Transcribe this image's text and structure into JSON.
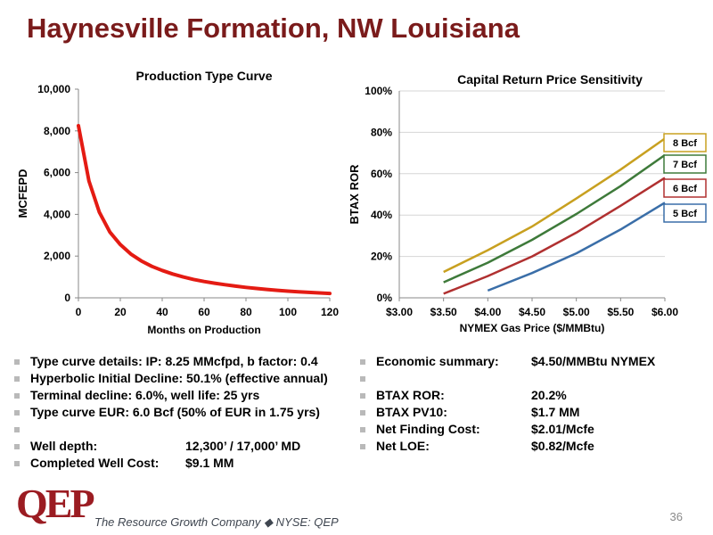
{
  "slide": {
    "title": "Haynesville Formation, NW Louisiana",
    "page_number": "36",
    "tagline": "The Resource Growth Company ◆ NYSE: QEP",
    "logo_text": "QEP",
    "colors": {
      "title": "#7a1b1b",
      "logo": "#9b1c22"
    }
  },
  "chart_data": [
    {
      "type": "line",
      "title": "Production Type Curve",
      "xlabel": "Months on Production",
      "ylabel": "MCFEPD",
      "xlim": [
        0,
        120
      ],
      "ylim": [
        0,
        10000
      ],
      "x_ticks": [
        "0",
        "20",
        "40",
        "60",
        "80",
        "100",
        "120"
      ],
      "y_ticks": [
        "0",
        "2,000",
        "4,000",
        "6,000",
        "8,000",
        "10,000"
      ],
      "grid": false,
      "series": [
        {
          "color": "#e41b13",
          "x": [
            0,
            5,
            10,
            15,
            20,
            25,
            30,
            35,
            40,
            45,
            50,
            55,
            60,
            65,
            70,
            75,
            80,
            85,
            90,
            95,
            100,
            105,
            110,
            115,
            120
          ],
          "y": [
            8250,
            5600,
            4100,
            3150,
            2550,
            2100,
            1770,
            1510,
            1310,
            1140,
            1000,
            880,
            780,
            700,
            630,
            560,
            500,
            450,
            400,
            360,
            320,
            290,
            260,
            235,
            210
          ]
        }
      ]
    },
    {
      "type": "line",
      "title": "Capital Return Price Sensitivity",
      "xlabel": "NYMEX Gas Price ($/MMBtu)",
      "ylabel": "BTAX ROR",
      "xlim": [
        3.0,
        6.0
      ],
      "ylim": [
        0,
        100
      ],
      "x_ticks": [
        "$3.00",
        "$3.50",
        "$4.00",
        "$4.50",
        "$5.00",
        "$5.50",
        "$6.00"
      ],
      "y_ticks": [
        "0%",
        "20%",
        "40%",
        "60%",
        "80%",
        "100%"
      ],
      "grid": true,
      "legend": "right, end-of-line labels",
      "series": [
        {
          "name": "8 Bcf",
          "color": "#c8a020",
          "x": [
            3.5,
            4.0,
            4.5,
            5.0,
            5.5,
            6.0
          ],
          "y": [
            12.5,
            23,
            34.5,
            48,
            62,
            77
          ]
        },
        {
          "name": "7 Bcf",
          "color": "#3e7a3a",
          "x": [
            3.5,
            4.0,
            4.5,
            5.0,
            5.5,
            6.0
          ],
          "y": [
            7.5,
            17,
            28,
            40.5,
            54,
            69
          ]
        },
        {
          "name": "6 Bcf",
          "color": "#b03030",
          "x": [
            3.5,
            4.0,
            4.5,
            5.0,
            5.5,
            6.0
          ],
          "y": [
            2,
            10.5,
            20,
            31.5,
            44.5,
            58
          ]
        },
        {
          "name": "5 Bcf",
          "color": "#3a6ea8",
          "x": [
            4.0,
            4.5,
            5.0,
            5.5,
            6.0
          ],
          "y": [
            3.5,
            12,
            21.5,
            33,
            46
          ]
        }
      ]
    }
  ],
  "bullets_left": [
    {
      "text": "Type curve details: IP: 8.25 MMcfpd, b factor: 0.4",
      "value": ""
    },
    {
      "text": "Hyperbolic Initial Decline:  50.1% (effective annual)",
      "value": ""
    },
    {
      "text": "Terminal decline:  6.0%, well life:  25 yrs",
      "value": ""
    },
    {
      "text": "Type curve EUR:  6.0 Bcf (50% of EUR in 1.75 yrs)",
      "value": ""
    },
    {
      "text": "",
      "value": ""
    },
    {
      "text": "Well depth:",
      "value": "12,300’ / 17,000’ MD"
    },
    {
      "text": "Completed Well Cost:",
      "value": "$9.1 MM"
    }
  ],
  "bullets_right": [
    {
      "text": "Economic summary:",
      "value": "$4.50/MMBtu NYMEX"
    },
    {
      "text": "",
      "value": ""
    },
    {
      "text": "BTAX ROR:",
      "value": "20.2%"
    },
    {
      "text": "BTAX PV10:",
      "value": "$1.7 MM"
    },
    {
      "text": "Net Finding Cost:",
      "value": "$2.01/Mcfe"
    },
    {
      "text": "Net LOE:",
      "value": "$0.82/Mcfe"
    }
  ]
}
